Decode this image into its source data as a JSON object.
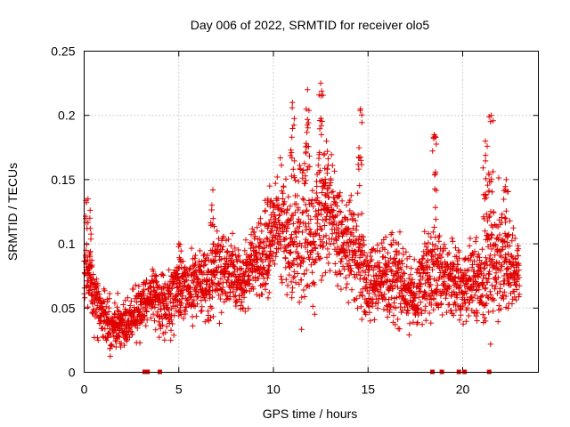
{
  "chart_data": {
    "type": "scatter",
    "title": "Day 006 of 2022, SRMTID for receiver olo5",
    "xlabel": "GPS time / hours",
    "ylabel": "SRMTID / TECUs",
    "xlim": [
      0,
      24
    ],
    "ylim": [
      0,
      0.25
    ],
    "xticks": [
      0,
      5,
      10,
      15,
      20
    ],
    "xtick_labels": [
      "0",
      "5",
      "10",
      "15",
      "20"
    ],
    "yticks": [
      0,
      0.05,
      0.1,
      0.15,
      0.2,
      0.25
    ],
    "ytick_labels": [
      "0",
      "0.05",
      "0.1",
      "0.15",
      "0.2",
      "0.25"
    ],
    "grid": true,
    "marker": "plus",
    "series": [
      {
        "name": "SRMTID",
        "color": "#e00000",
        "profile": {
          "hours": [
            0,
            0.5,
            1,
            1.5,
            2,
            2.5,
            3,
            3.5,
            4,
            4.5,
            5,
            5.5,
            6,
            6.5,
            7,
            7.5,
            8,
            8.5,
            9,
            9.5,
            10,
            10.5,
            11,
            11.5,
            12,
            12.5,
            13,
            13.5,
            14,
            14.5,
            15,
            15.5,
            16,
            16.5,
            17,
            17.5,
            18,
            18.5,
            19,
            19.5,
            20,
            20.5,
            21,
            21.5,
            22,
            22.5,
            23
          ],
          "median": [
            0.085,
            0.06,
            0.045,
            0.035,
            0.038,
            0.04,
            0.05,
            0.06,
            0.055,
            0.055,
            0.065,
            0.065,
            0.07,
            0.07,
            0.075,
            0.08,
            0.075,
            0.07,
            0.085,
            0.09,
            0.11,
            0.115,
            0.1,
            0.11,
            0.11,
            0.125,
            0.12,
            0.105,
            0.095,
            0.09,
            0.07,
            0.07,
            0.075,
            0.075,
            0.065,
            0.06,
            0.075,
            0.08,
            0.075,
            0.07,
            0.065,
            0.07,
            0.075,
            0.085,
            0.09,
            0.085,
            0.07
          ],
          "spread": [
            0.02,
            0.02,
            0.015,
            0.015,
            0.015,
            0.015,
            0.015,
            0.015,
            0.02,
            0.02,
            0.02,
            0.02,
            0.02,
            0.025,
            0.025,
            0.02,
            0.02,
            0.02,
            0.025,
            0.025,
            0.025,
            0.04,
            0.04,
            0.05,
            0.05,
            0.04,
            0.035,
            0.03,
            0.03,
            0.03,
            0.025,
            0.02,
            0.025,
            0.025,
            0.02,
            0.02,
            0.025,
            0.03,
            0.03,
            0.02,
            0.02,
            0.025,
            0.03,
            0.04,
            0.035,
            0.025,
            0.02
          ]
        },
        "peaks": [
          [
            0.2,
            0.135
          ],
          [
            0.3,
            0.12
          ],
          [
            5.0,
            0.1
          ],
          [
            6.8,
            0.142
          ],
          [
            9.8,
            0.145
          ],
          [
            11.0,
            0.21
          ],
          [
            11.8,
            0.22
          ],
          [
            12.5,
            0.225
          ],
          [
            12.8,
            0.18
          ],
          [
            14.6,
            0.205
          ],
          [
            18.5,
            0.185
          ],
          [
            21.5,
            0.2
          ],
          [
            21.2,
            0.18
          ],
          [
            22.3,
            0.15
          ]
        ],
        "zero_values_at_hours": [
          3.2,
          3.35,
          4.0,
          18.4,
          18.9,
          19.8,
          20.1,
          21.4
        ]
      }
    ]
  }
}
